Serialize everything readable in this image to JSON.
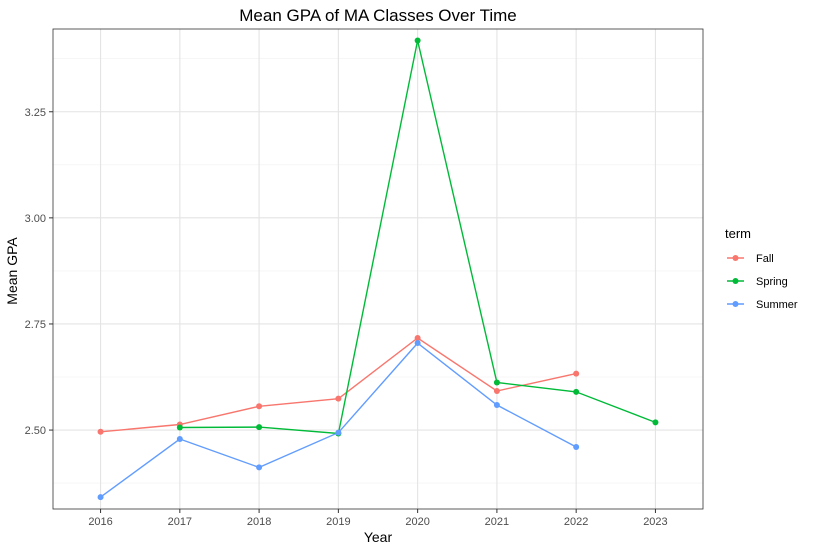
{
  "chart_data": {
    "type": "line",
    "title": "Mean GPA of MA Classes Over Time",
    "xlabel": "Year",
    "ylabel": "Mean GPA",
    "x_ticks": [
      2016,
      2017,
      2018,
      2019,
      2020,
      2021,
      2022,
      2023
    ],
    "x_tick_labels": [
      "2016",
      "2017",
      "2018",
      "2019",
      "2020",
      "2021",
      "2022",
      "2023"
    ],
    "y_ticks": [
      2.5,
      2.75,
      3.0,
      3.25
    ],
    "y_tick_labels": [
      "2.50",
      "2.75",
      "3.00",
      "3.25"
    ],
    "xlim": [
      2015.4,
      2023.6
    ],
    "ylim": [
      2.314,
      3.445
    ],
    "grid": true,
    "legend_title": "term",
    "legend_position": "right",
    "series": [
      {
        "name": "Fall",
        "color": "#F8766D",
        "points": [
          {
            "x": 2016,
            "y": 2.496
          },
          {
            "x": 2017,
            "y": 2.513
          },
          {
            "x": 2018,
            "y": 2.556
          },
          {
            "x": 2019,
            "y": 2.574
          },
          {
            "x": 2020,
            "y": 2.717
          },
          {
            "x": 2021,
            "y": 2.592
          },
          {
            "x": 2022,
            "y": 2.633
          }
        ]
      },
      {
        "name": "Spring",
        "color": "#00BA38",
        "points": [
          {
            "x": 2017,
            "y": 2.506
          },
          {
            "x": 2018,
            "y": 2.507
          },
          {
            "x": 2019,
            "y": 2.492
          },
          {
            "x": 2020,
            "y": 3.418
          },
          {
            "x": 2021,
            "y": 2.612
          },
          {
            "x": 2022,
            "y": 2.59
          },
          {
            "x": 2023,
            "y": 2.518
          }
        ]
      },
      {
        "name": "Summer",
        "color": "#619CFF",
        "points": [
          {
            "x": 2016,
            "y": 2.342
          },
          {
            "x": 2017,
            "y": 2.479
          },
          {
            "x": 2018,
            "y": 2.412
          },
          {
            "x": 2019,
            "y": 2.494
          },
          {
            "x": 2020,
            "y": 2.705
          },
          {
            "x": 2021,
            "y": 2.559
          },
          {
            "x": 2022,
            "y": 2.46
          }
        ]
      }
    ]
  }
}
